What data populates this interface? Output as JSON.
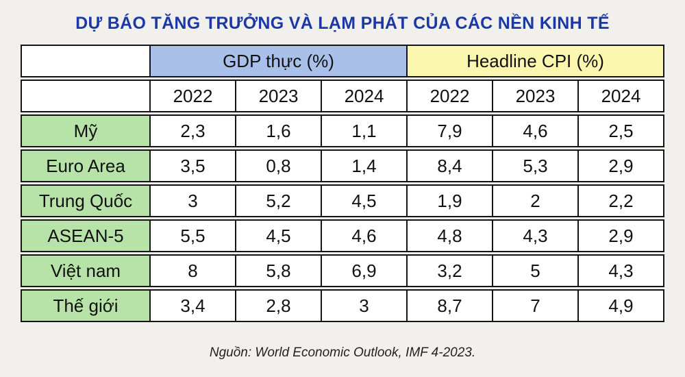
{
  "page": {
    "title": "DỰ BÁO TĂNG TRƯỞNG VÀ LẠM PHÁT CỦA CÁC NỀN KINH TẾ",
    "source": "Nguồn: World Economic Outlook, IMF 4-2023."
  },
  "table": {
    "group_headers": [
      {
        "label": "GDP thực (%)",
        "color": "#a9c0ea"
      },
      {
        "label": "Headline CPI (%)",
        "color": "#fcf7ae"
      }
    ],
    "year_headers": [
      "2022",
      "2023",
      "2024",
      "2022",
      "2023",
      "2024"
    ],
    "rows": [
      {
        "label": "Mỹ",
        "values": [
          "2,3",
          "1,6",
          "1,1",
          "7,9",
          "4,6",
          "2,5"
        ]
      },
      {
        "label": "Euro Area",
        "values": [
          "3,5",
          "0,8",
          "1,4",
          "8,4",
          "5,3",
          "2,9"
        ]
      },
      {
        "label": "Trung Quốc",
        "values": [
          "3",
          "5,2",
          "4,5",
          "1,9",
          "2",
          "2,2"
        ]
      },
      {
        "label": "ASEAN-5",
        "values": [
          "5,5",
          "4,5",
          "4,6",
          "4,8",
          "4,3",
          "2,9"
        ]
      },
      {
        "label": "Việt nam",
        "values": [
          "8",
          "5,8",
          "6,9",
          "3,2",
          "5",
          "4,3"
        ]
      },
      {
        "label": "Thế giới",
        "values": [
          "3,4",
          "2,8",
          "3",
          "8,7",
          "7",
          "4,9"
        ]
      }
    ],
    "colors": {
      "row_label_bg": "#b7e3a8",
      "gdp_header_bg": "#a9c0ea",
      "cpi_header_bg": "#fcf7ae",
      "title_text": "#1b38a6",
      "page_bg": "#f2f0ec",
      "border": "#141414"
    }
  },
  "chart_data": {
    "type": "table",
    "title": "DỰ BÁO TĂNG TRƯỞNG VÀ LẠM PHÁT CỦA CÁC NỀN KINH TẾ",
    "column_groups": [
      {
        "name": "GDP thực (%)",
        "years": [
          2022,
          2023,
          2024
        ]
      },
      {
        "name": "Headline CPI (%)",
        "years": [
          2022,
          2023,
          2024
        ]
      }
    ],
    "rows": [
      {
        "economy": "Mỹ",
        "gdp": [
          2.3,
          1.6,
          1.1
        ],
        "cpi": [
          7.9,
          4.6,
          2.5
        ]
      },
      {
        "economy": "Euro Area",
        "gdp": [
          3.5,
          0.8,
          1.4
        ],
        "cpi": [
          8.4,
          5.3,
          2.9
        ]
      },
      {
        "economy": "Trung Quốc",
        "gdp": [
          3.0,
          5.2,
          4.5
        ],
        "cpi": [
          1.9,
          2.0,
          2.2
        ]
      },
      {
        "economy": "ASEAN-5",
        "gdp": [
          5.5,
          4.5,
          4.6
        ],
        "cpi": [
          4.8,
          4.3,
          2.9
        ]
      },
      {
        "economy": "Việt nam",
        "gdp": [
          8.0,
          5.8,
          6.9
        ],
        "cpi": [
          3.2,
          5.0,
          4.3
        ]
      },
      {
        "economy": "Thế giới",
        "gdp": [
          3.4,
          2.8,
          3.0
        ],
        "cpi": [
          8.7,
          7.0,
          4.9
        ]
      }
    ],
    "source": "Nguồn: World Economic Outlook, IMF 4-2023."
  }
}
